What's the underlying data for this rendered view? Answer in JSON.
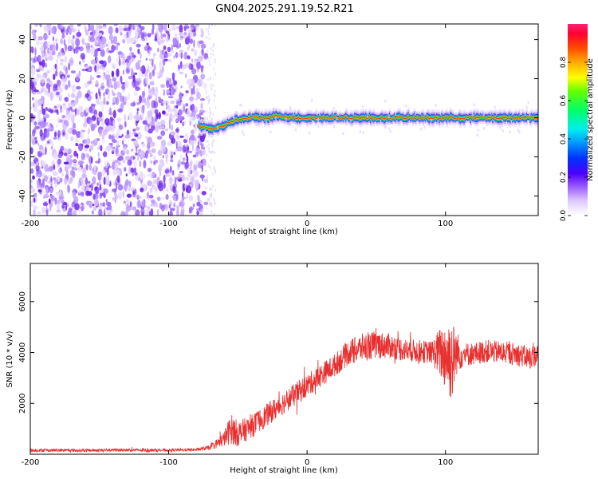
{
  "figure": {
    "title": "GN04.2025.291.19.52.R21"
  },
  "chart_data": [
    {
      "type": "heatmap",
      "name": "spectrogram",
      "title": "GN04.2025.291.19.52.R21",
      "xlabel": "Height of straight line (km)",
      "ylabel": "Frequency (Hz)",
      "xlim": [
        -200,
        167
      ],
      "ylim": [
        -50,
        48
      ],
      "xticks": [
        -200,
        -100,
        0,
        100
      ],
      "yticks": [
        -40,
        -20,
        0,
        20,
        40
      ],
      "noise_region_x": [
        -200,
        -73
      ],
      "signal_ridge": {
        "x": [
          -78,
          -72,
          -66,
          -60,
          -55,
          -50,
          -40,
          -30,
          -20,
          -10,
          0,
          20,
          40,
          60,
          80,
          100,
          120,
          140,
          165
        ],
        "freq": [
          -4,
          -5,
          -6,
          -4,
          -2,
          -1,
          0,
          0,
          1,
          0,
          0,
          0,
          0,
          0,
          0,
          0,
          0,
          0,
          0
        ]
      },
      "colorbar": {
        "label": "Normalized spectral amplitude",
        "range": [
          0,
          1
        ],
        "ticks": [
          "0.0",
          "0.2",
          "0.4",
          "0.6",
          "0.8"
        ],
        "tick_values": [
          0.0,
          0.2,
          0.4,
          0.6,
          0.8
        ]
      }
    },
    {
      "type": "line",
      "name": "snr",
      "xlabel": "Height of straight line (km)",
      "ylabel": "SNR (10 * v/v)",
      "xlim": [
        -200,
        167
      ],
      "ylim": [
        0,
        7500
      ],
      "xticks": [
        -200,
        -100,
        0,
        100
      ],
      "yticks": [
        2000,
        4000,
        6000
      ],
      "color": "#e8302f",
      "series": [
        {
          "name": "SNR",
          "x": [
            -200,
            -180,
            -160,
            -140,
            -120,
            -100,
            -80,
            -70,
            -60,
            -55,
            -50,
            -40,
            -30,
            -20,
            -10,
            0,
            10,
            20,
            30,
            40,
            50,
            60,
            70,
            80,
            90,
            95,
            100,
            103,
            105,
            108,
            112,
            120,
            130,
            140,
            150,
            160,
            167
          ],
          "y": [
            150,
            160,
            150,
            170,
            160,
            160,
            180,
            260,
            600,
            1000,
            800,
            1100,
            1500,
            1900,
            2300,
            2700,
            3100,
            3500,
            4000,
            4200,
            4300,
            4250,
            4100,
            4050,
            4000,
            4000,
            3900,
            3800,
            3700,
            4000,
            3900,
            3950,
            4050,
            4000,
            3950,
            3800,
            3900
          ],
          "noise_amplitude": [
            60,
            60,
            60,
            60,
            60,
            60,
            60,
            90,
            300,
            600,
            500,
            450,
            450,
            450,
            450,
            450,
            450,
            450,
            500,
            550,
            550,
            500,
            450,
            450,
            450,
            900,
            1400,
            1700,
            1600,
            900,
            500,
            450,
            450,
            450,
            450,
            450,
            450
          ]
        }
      ]
    }
  ]
}
